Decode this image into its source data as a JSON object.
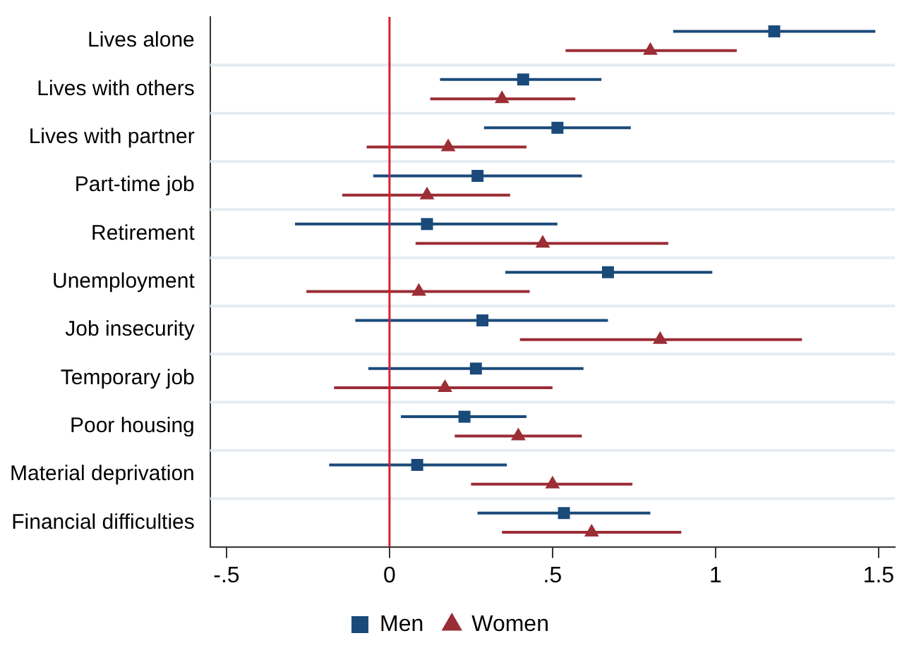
{
  "chart_data": {
    "type": "scatter",
    "orientation": "horizontal",
    "categories": [
      "Lives alone",
      "Lives with others",
      "Lives with partner",
      "Part-time job",
      "Retirement",
      "Unemployment",
      "Job insecurity",
      "Temporary job",
      "Poor housing",
      "Material deprivation",
      "Financial difficulties"
    ],
    "series": [
      {
        "name": "Men",
        "color": "#1a4a7a",
        "marker": "square",
        "values": [
          1.18,
          0.41,
          0.515,
          0.27,
          0.115,
          0.67,
          0.285,
          0.265,
          0.23,
          0.085,
          0.535
        ],
        "errors": [
          [
            0.87,
            1.49
          ],
          [
            0.155,
            0.65
          ],
          [
            0.29,
            0.74
          ],
          [
            -0.05,
            0.59
          ],
          [
            -0.29,
            0.515
          ],
          [
            0.355,
            0.99
          ],
          [
            -0.105,
            0.67
          ],
          [
            -0.065,
            0.595
          ],
          [
            0.035,
            0.42
          ],
          [
            -0.185,
            0.36
          ],
          [
            0.27,
            0.8
          ]
        ]
      },
      {
        "name": "Women",
        "color": "#9b2d35",
        "marker": "triangle",
        "values": [
          0.8,
          0.345,
          0.18,
          0.115,
          0.47,
          0.09,
          0.83,
          0.17,
          0.395,
          0.5,
          0.62
        ],
        "errors": [
          [
            0.54,
            1.065
          ],
          [
            0.125,
            0.57
          ],
          [
            -0.07,
            0.42
          ],
          [
            -0.145,
            0.37
          ],
          [
            0.08,
            0.855
          ],
          [
            -0.255,
            0.43
          ],
          [
            0.4,
            1.265
          ],
          [
            -0.17,
            0.5
          ],
          [
            0.2,
            0.59
          ],
          [
            0.25,
            0.745
          ],
          [
            0.345,
            0.895
          ]
        ]
      }
    ],
    "xlim": [
      -0.55,
      1.55
    ],
    "xticks": [
      {
        "value": -0.5,
        "label": "-.5"
      },
      0,
      {
        "value": 0.5,
        "label": ".5"
      },
      1,
      {
        "value": 1.5,
        "label": "1.5"
      }
    ],
    "ref_lines": [
      {
        "axis": "x",
        "value": 0,
        "color": "#d62033"
      }
    ],
    "grid": "y",
    "legend": "bottom"
  }
}
